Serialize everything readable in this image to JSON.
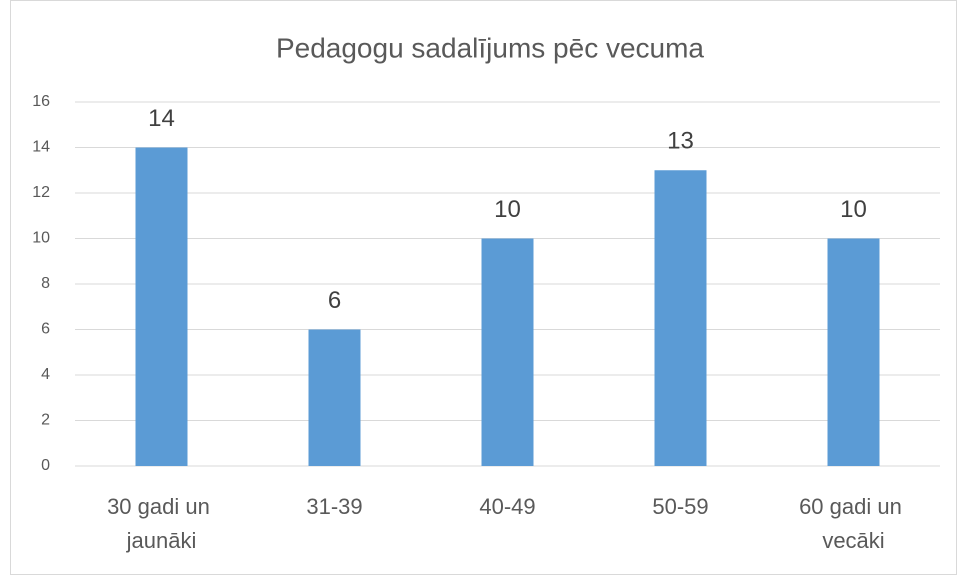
{
  "chart_data": {
    "type": "bar",
    "title": "Pedagogu sadalījums pēc vecuma",
    "categories": [
      "30 gadi un jaunāki",
      "31-39",
      "40-49",
      "50-59",
      "60 gadi un vecāki"
    ],
    "values": [
      14,
      6,
      10,
      13,
      10
    ],
    "color": "#5b9bd5",
    "ylim": [
      0,
      16
    ],
    "yticks": [
      0,
      2,
      4,
      6,
      8,
      10,
      12,
      14,
      16
    ],
    "grid": true
  }
}
